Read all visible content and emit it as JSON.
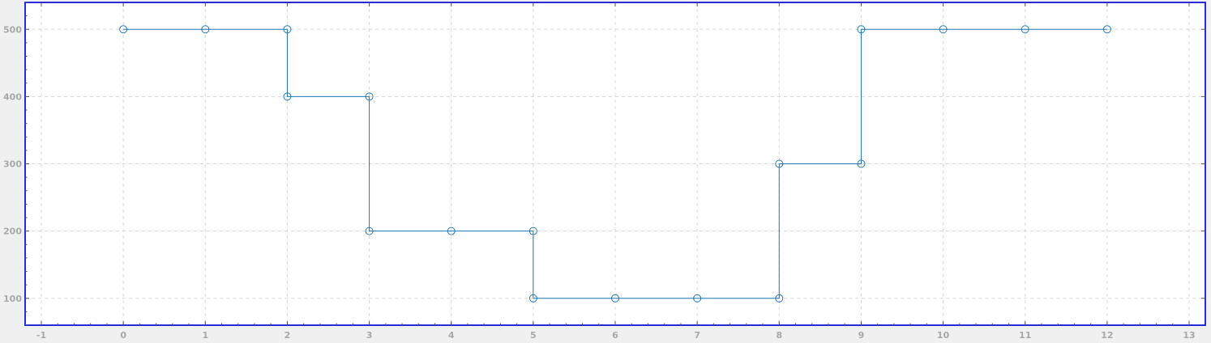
{
  "chart_data": {
    "type": "line",
    "step": "vertical-connector",
    "marker": "hollow-circle",
    "x": [
      0,
      1,
      2,
      2,
      3,
      3,
      4,
      5,
      5,
      6,
      7,
      8,
      8,
      9,
      9,
      10,
      11,
      12
    ],
    "series": [
      {
        "values": [
          500,
          500,
          500,
          400,
          400,
          200,
          200,
          200,
          100,
          100,
          100,
          100,
          300,
          300,
          500,
          500,
          500,
          500
        ]
      }
    ],
    "xlim": [
      -1,
      13
    ],
    "ylim": [
      60,
      540
    ],
    "x_ticks": [
      "-1",
      "0",
      "1",
      "2",
      "3",
      "4",
      "5",
      "6",
      "7",
      "8",
      "9",
      "10",
      "11",
      "12",
      "13"
    ],
    "y_ticks": [
      "100",
      "200",
      "300",
      "400",
      "500"
    ],
    "grid": true,
    "title": "",
    "xlabel": "",
    "ylabel": ""
  },
  "colors": {
    "series": "#1f77b4",
    "frame": "#2a2add",
    "plot_bg": "#ffffff",
    "page_bg": "#f0f0f0"
  }
}
